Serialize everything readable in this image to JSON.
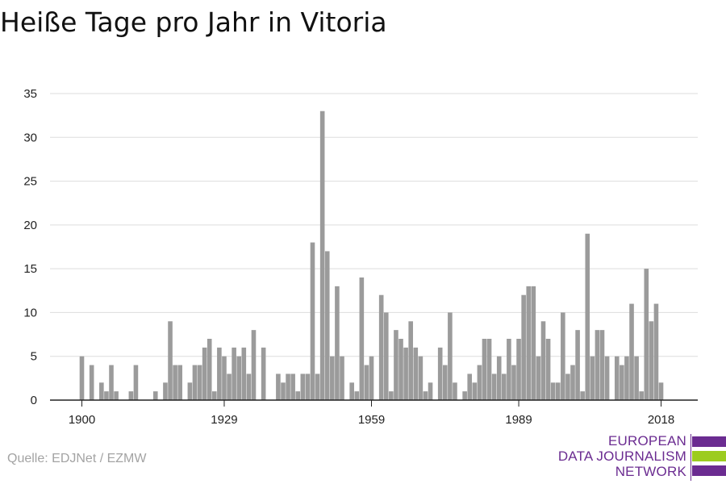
{
  "title": "Heiße Tage pro Jahr in Vitoria",
  "source": "Quelle: EDJNet / EZMW",
  "logo": {
    "line1": "EUROPEAN",
    "line2": "DATA JOURNALISM",
    "line3": "NETWORK",
    "colors": [
      "#6b2c91",
      "#9ccc1f",
      "#6b2c91"
    ]
  },
  "colors": {
    "bar": "#9b9b9b",
    "grid": "#dddddd",
    "axis": "#222222",
    "text": "#222222"
  },
  "chart_data": {
    "type": "bar",
    "title": "Heiße Tage pro Jahr in Vitoria",
    "xlabel": "",
    "ylabel": "",
    "ylim": [
      0,
      35
    ],
    "yticks": [
      0,
      5,
      10,
      15,
      20,
      25,
      30,
      35
    ],
    "xticks": [
      "1900",
      "1929",
      "1959",
      "1989",
      "2018"
    ],
    "grid": true,
    "categories": [
      "1900",
      "1901",
      "1902",
      "1903",
      "1904",
      "1905",
      "1906",
      "1907",
      "1908",
      "1909",
      "1910",
      "1911",
      "1912",
      "1913",
      "1914",
      "1915",
      "1916",
      "1917",
      "1918",
      "1919",
      "1920",
      "1921",
      "1922",
      "1923",
      "1924",
      "1925",
      "1926",
      "1927",
      "1928",
      "1929",
      "1930",
      "1931",
      "1932",
      "1933",
      "1934",
      "1935",
      "1936",
      "1937",
      "1938",
      "1939",
      "1940",
      "1941",
      "1942",
      "1943",
      "1944",
      "1945",
      "1946",
      "1947",
      "1948",
      "1949",
      "1950",
      "1951",
      "1952",
      "1953",
      "1954",
      "1955",
      "1956",
      "1957",
      "1958",
      "1959",
      "1960",
      "1961",
      "1962",
      "1963",
      "1964",
      "1965",
      "1966",
      "1967",
      "1968",
      "1969",
      "1970",
      "1971",
      "1972",
      "1973",
      "1974",
      "1975",
      "1976",
      "1977",
      "1978",
      "1979",
      "1980",
      "1981",
      "1982",
      "1983",
      "1984",
      "1985",
      "1986",
      "1987",
      "1988",
      "1989",
      "1990",
      "1991",
      "1992",
      "1993",
      "1994",
      "1995",
      "1996",
      "1997",
      "1998",
      "1999",
      "2000",
      "2001",
      "2002",
      "2003",
      "2004",
      "2005",
      "2006",
      "2007",
      "2008",
      "2009",
      "2010",
      "2011",
      "2012",
      "2013",
      "2014",
      "2015",
      "2016",
      "2017",
      "2018"
    ],
    "values": [
      5,
      0,
      4,
      0,
      2,
      1,
      4,
      1,
      0,
      0,
      1,
      4,
      0,
      0,
      0,
      1,
      0,
      2,
      9,
      4,
      4,
      0,
      2,
      4,
      4,
      6,
      7,
      1,
      6,
      5,
      3,
      6,
      5,
      6,
      3,
      8,
      0,
      6,
      0,
      0,
      3,
      2,
      3,
      3,
      1,
      3,
      3,
      18,
      3,
      33,
      17,
      5,
      13,
      5,
      0,
      2,
      1,
      14,
      4,
      5,
      0,
      12,
      10,
      1,
      8,
      7,
      6,
      9,
      6,
      5,
      1,
      2,
      0,
      6,
      4,
      10,
      2,
      0,
      1,
      3,
      2,
      4,
      7,
      7,
      3,
      5,
      3,
      7,
      4,
      7,
      12,
      13,
      13,
      5,
      9,
      7,
      2,
      2,
      10,
      3,
      4,
      8,
      1,
      19,
      5,
      8,
      8,
      5,
      0,
      5,
      4,
      5,
      11,
      5,
      1,
      15,
      9,
      11,
      2
    ]
  }
}
